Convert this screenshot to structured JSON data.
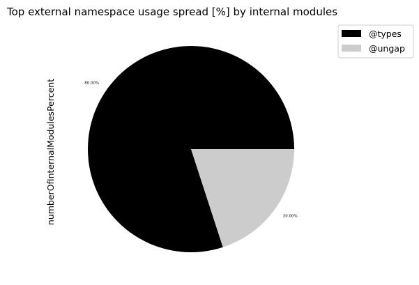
{
  "chart_data": {
    "type": "pie",
    "title": "Top external namespace usage spread [%] by internal modules",
    "ylabel": "numberOfInternalModulesPercent",
    "slices": [
      {
        "label": "@types",
        "value": 80.0,
        "display": "80.00%",
        "color": "#000000"
      },
      {
        "label": "@ungap",
        "value": 20.0,
        "display": "20.00%",
        "color": "#cccccc"
      }
    ],
    "legend_position": "top-right"
  }
}
